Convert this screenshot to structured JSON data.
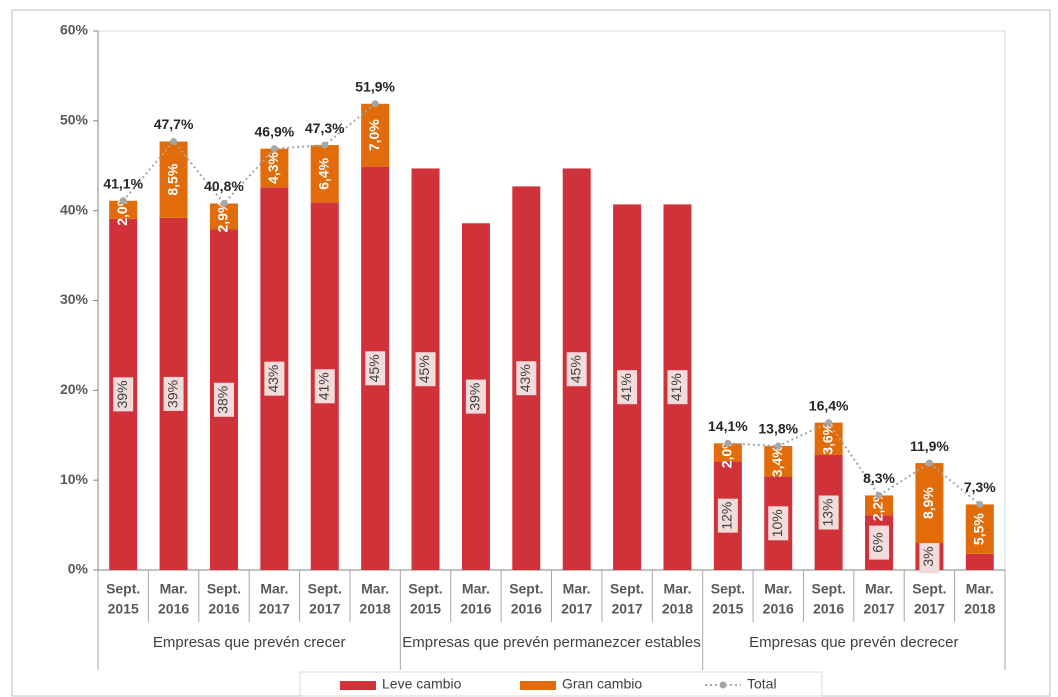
{
  "chart_data": {
    "type": "bar",
    "stacked": true,
    "categories": [
      [
        "Sept.",
        "2015"
      ],
      [
        "Mar.",
        "2016"
      ],
      [
        "Sept.",
        "2016"
      ],
      [
        "Mar.",
        "2017"
      ],
      [
        "Sept.",
        "2017"
      ],
      [
        "Mar.",
        "2018"
      ],
      [
        "Sept.",
        "2015"
      ],
      [
        "Mar.",
        "2016"
      ],
      [
        "Sept.",
        "2016"
      ],
      [
        "Mar.",
        "2017"
      ],
      [
        "Sept.",
        "2017"
      ],
      [
        "Mar.",
        "2018"
      ],
      [
        "Sept.",
        "2015"
      ],
      [
        "Mar.",
        "2016"
      ],
      [
        "Sept.",
        "2016"
      ],
      [
        "Mar.",
        "2017"
      ],
      [
        "Sept.",
        "2017"
      ],
      [
        "Mar.",
        "2018"
      ]
    ],
    "groups": [
      "Empresas que prevén crecer",
      "Empresas que prevén permanezcer estables",
      "Empresas que prevén decrecer"
    ],
    "series": [
      {
        "name": "Leve cambio",
        "type": "bar",
        "color": "#d0323a",
        "values": [
          39.1,
          39.2,
          37.9,
          42.6,
          40.9,
          44.9,
          44.7,
          38.6,
          42.7,
          44.7,
          40.7,
          40.7,
          12.1,
          10.4,
          12.8,
          6.1,
          3.0,
          1.8
        ],
        "value_labels": [
          "39%",
          "39%",
          "38%",
          "43%",
          "41%",
          "45%",
          "45%",
          "39%",
          "43%",
          "45%",
          "41%",
          "41%",
          "12%",
          "10%",
          "13%",
          "6%",
          "3%",
          null
        ]
      },
      {
        "name": "Gran cambio",
        "type": "bar",
        "color": "#e36c0a",
        "values": [
          2.0,
          8.5,
          2.9,
          4.3,
          6.4,
          7.0,
          null,
          null,
          null,
          null,
          null,
          null,
          2.0,
          3.4,
          3.6,
          2.2,
          8.9,
          5.5
        ],
        "value_labels": [
          "2,0%",
          "8,5%",
          "2,9%",
          "4,3%",
          "6,4%",
          "7,0%",
          null,
          null,
          null,
          null,
          null,
          null,
          "2,0%",
          "3,4%",
          "3,6%",
          "2,2%",
          "8,9%",
          "5,5%"
        ]
      },
      {
        "name": "Total",
        "type": "line",
        "color": "#a6a6a6",
        "values": [
          41.1,
          47.7,
          40.8,
          46.9,
          47.3,
          51.9,
          null,
          null,
          null,
          null,
          null,
          null,
          14.1,
          13.8,
          16.4,
          8.3,
          11.9,
          7.3
        ],
        "value_labels": [
          "41,1%",
          "47,7%",
          "40,8%",
          "46,9%",
          "47,3%",
          "51,9%",
          null,
          null,
          null,
          null,
          null,
          null,
          "14,1%",
          "13,8%",
          "16,4%",
          "8,3%",
          "11,9%",
          "7,3%"
        ]
      }
    ],
    "ylim": [
      0,
      60
    ],
    "yticks": [
      {
        "value": 0,
        "label": "0%"
      },
      {
        "value": 10,
        "label": "10%"
      },
      {
        "value": 20,
        "label": "20%"
      },
      {
        "value": 30,
        "label": "30%"
      },
      {
        "value": 40,
        "label": "40%"
      },
      {
        "value": 50,
        "label": "50%"
      },
      {
        "value": 60,
        "label": "60%"
      }
    ],
    "grid": false,
    "legend": "bottom"
  }
}
